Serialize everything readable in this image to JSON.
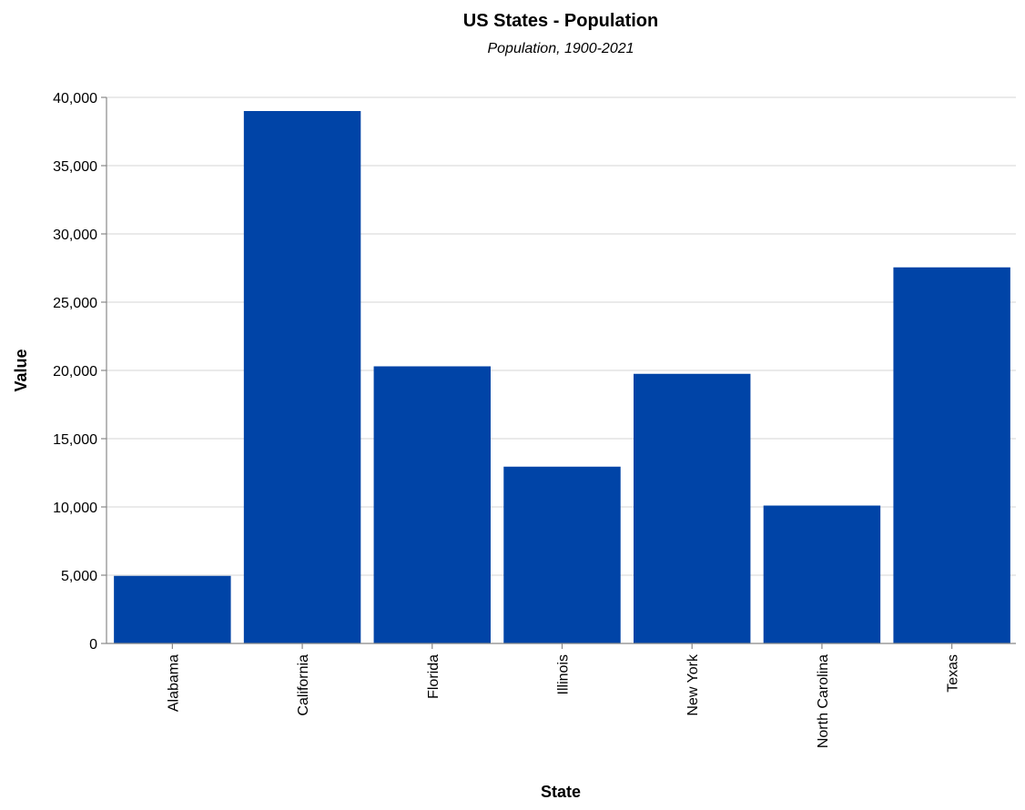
{
  "chart_data": {
    "type": "bar",
    "title": "US States - Population",
    "subtitle": "Population, 1900-2021",
    "xlabel": "State",
    "ylabel": "Value",
    "categories": [
      "Alabama",
      "California",
      "Florida",
      "Illinois",
      "New York",
      "North Carolina",
      "Texas"
    ],
    "values": [
      4950,
      39000,
      20300,
      12950,
      19750,
      10100,
      27550
    ],
    "ylim": [
      0,
      40000
    ],
    "yticks": [
      0,
      5000,
      10000,
      15000,
      20000,
      25000,
      30000,
      35000,
      40000
    ],
    "ytick_labels": [
      "0",
      "5,000",
      "10,000",
      "15,000",
      "20,000",
      "25,000",
      "30,000",
      "35,000",
      "40,000"
    ],
    "grid": true,
    "legend": "none",
    "bar_color": "#0044a7"
  }
}
